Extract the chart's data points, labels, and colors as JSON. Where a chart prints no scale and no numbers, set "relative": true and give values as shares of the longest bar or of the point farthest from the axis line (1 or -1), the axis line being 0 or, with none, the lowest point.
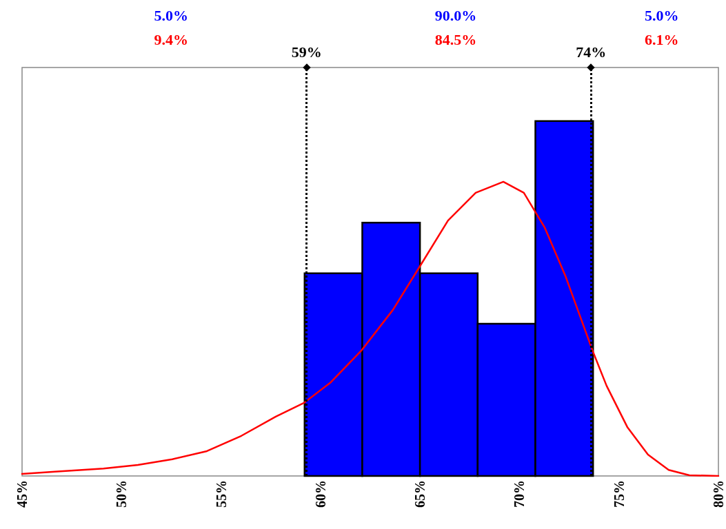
{
  "chart_data": {
    "type": "histogram",
    "relative": true,
    "bins": [
      59.2,
      62.1,
      65.0,
      67.9,
      70.8,
      73.7
    ],
    "values": [
      0.571,
      0.714,
      0.571,
      0.429,
      1
    ],
    "color": "#0000ff",
    "xlim": [
      45,
      80
    ],
    "xticks": [
      {
        "value": 45,
        "label": "45%"
      },
      {
        "value": 50,
        "label": "50%"
      },
      {
        "value": 55,
        "label": "55%"
      },
      {
        "value": 60,
        "label": "60%"
      },
      {
        "value": 65,
        "label": "65%"
      },
      {
        "value": 70,
        "label": "70%"
      },
      {
        "value": 75,
        "label": "75%"
      },
      {
        "value": 80,
        "label": "80%"
      }
    ],
    "grid": false,
    "series": [
      {
        "type": "line",
        "color": "#ff0000",
        "x": [
          45,
          46.66,
          49.09,
          50.82,
          52.55,
          54.29,
          56.02,
          57.75,
          59.17,
          60.52,
          62.08,
          63.64,
          65.03,
          66.41,
          67.8,
          69.19,
          70.22,
          71.26,
          72.3,
          73.69,
          74.38,
          75.42,
          76.46,
          77.5,
          78.54,
          80
        ],
        "values": [
          0.006,
          0.012,
          0.021,
          0.031,
          0.047,
          0.07,
          0.113,
          0.167,
          0.206,
          0.264,
          0.355,
          0.468,
          0.594,
          0.72,
          0.798,
          0.829,
          0.798,
          0.701,
          0.565,
          0.351,
          0.254,
          0.138,
          0.06,
          0.017,
          0.002,
          0
        ]
      }
    ],
    "ref_lines": [
      {
        "axis": "x",
        "value": 59.3,
        "label": "59%",
        "color": "#000000",
        "line_style": "dotted"
      },
      {
        "axis": "x",
        "value": 73.6,
        "label": "74%",
        "color": "#000000",
        "line_style": "dotted"
      }
    ],
    "annotations": [
      "5.0%",
      "9.4%",
      "90.0%",
      "84.5%",
      "5.0%",
      "6.1%"
    ]
  }
}
